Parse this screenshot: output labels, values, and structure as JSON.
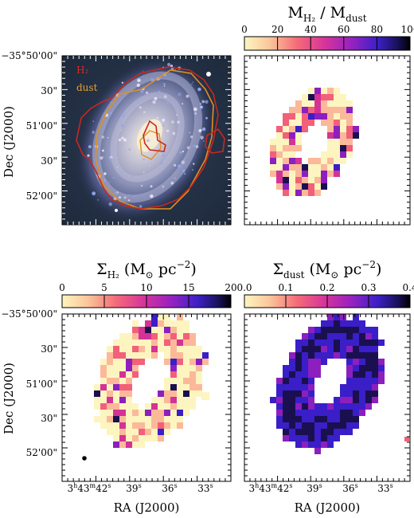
{
  "panels": {
    "optical": {
      "legend_h2": "H₂",
      "legend_dust": "dust",
      "colors": {
        "h2": "#c8281e",
        "dust": "#e09020"
      }
    },
    "ratio": {
      "title_main": "M",
      "title_sub1": "H₂",
      "title_mid": " / M",
      "title_sub2": "dust",
      "cbar_ticks": [
        "0",
        "20",
        "40",
        "60",
        "80",
        "100"
      ]
    },
    "sigma_h2": {
      "title_main": "Σ",
      "title_sub": "H₂",
      "title_unit": " (M",
      "title_sun": "⊙",
      "title_pc": " pc",
      "title_exp": "−2",
      "title_close": ")",
      "cbar_ticks": [
        "0",
        "5",
        "10",
        "15",
        "20"
      ]
    },
    "sigma_dust": {
      "title_main": "Σ",
      "title_sub": "dust",
      "title_unit": " (M",
      "title_sun": "⊙",
      "title_pc": " pc",
      "title_exp": "−2",
      "title_close": ")",
      "cbar_ticks": [
        "0.0",
        "0.1",
        "0.2",
        "0.3",
        "0.4"
      ]
    }
  },
  "axes": {
    "dec_label": "Dec (J2000)",
    "ra_label": "RA (J2000)",
    "dec_ticks": [
      "−35°50'00\"",
      "30\"",
      "51'00\"",
      "30\"",
      "52'00\""
    ],
    "ra_ticks": {
      "first_h": "3",
      "first_h_sup": "h",
      "first_m": "43",
      "first_m_sup": "m",
      "first_s": "42",
      "first_s_sup": "s",
      "t2": "39",
      "t3": "36",
      "t4": "33",
      "sup": "s"
    }
  },
  "colormap": [
    "#fdf5c0",
    "#fbb99a",
    "#f2607a",
    "#d43296",
    "#8c1fbe",
    "#3a1ec8",
    "#1a1050",
    "#000000"
  ]
}
